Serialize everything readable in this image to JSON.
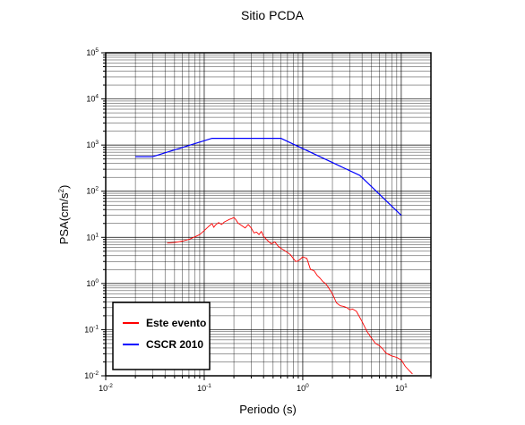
{
  "chart_data": {
    "type": "line",
    "title": "Sitio PCDA",
    "xlabel": "Periodo (s)",
    "ylabel": "PSA(cm/s",
    "ylabel_exponent": "2",
    "ylabel_suffix": ")",
    "x_scale": "log",
    "y_scale": "log",
    "xlim": [
      0.01,
      20
    ],
    "ylim": [
      0.01,
      100000
    ],
    "grid": true,
    "legend_position": "bottom-left",
    "x_ticks": [
      {
        "base": "10",
        "exp": "-2",
        "value": 0.01
      },
      {
        "base": "10",
        "exp": "-1",
        "value": 0.1
      },
      {
        "base": "10",
        "exp": "0",
        "value": 1
      },
      {
        "base": "10",
        "exp": "1",
        "value": 10
      }
    ],
    "y_ticks": [
      {
        "base": "10",
        "exp": "-2",
        "value": 0.01
      },
      {
        "base": "10",
        "exp": "-1",
        "value": 0.1
      },
      {
        "base": "10",
        "exp": "0",
        "value": 1
      },
      {
        "base": "10",
        "exp": "1",
        "value": 10
      },
      {
        "base": "10",
        "exp": "2",
        "value": 100
      },
      {
        "base": "10",
        "exp": "3",
        "value": 1000
      },
      {
        "base": "10",
        "exp": "4",
        "value": 10000
      },
      {
        "base": "10",
        "exp": "5",
        "value": 100000
      }
    ],
    "series": [
      {
        "name": "Este evento",
        "color": "#ff0000",
        "points": [
          [
            0.042,
            7.5
          ],
          [
            0.05,
            7.8
          ],
          [
            0.06,
            8.3
          ],
          [
            0.07,
            9.0
          ],
          [
            0.08,
            10.2
          ],
          [
            0.09,
            11.5
          ],
          [
            0.1,
            14.0
          ],
          [
            0.11,
            17.0
          ],
          [
            0.12,
            20.0
          ],
          [
            0.125,
            16.5
          ],
          [
            0.13,
            18.5
          ],
          [
            0.14,
            21.0
          ],
          [
            0.15,
            19.0
          ],
          [
            0.16,
            21.5
          ],
          [
            0.17,
            23.0
          ],
          [
            0.18,
            24.5
          ],
          [
            0.19,
            25.5
          ],
          [
            0.2,
            27.0
          ],
          [
            0.21,
            24.0
          ],
          [
            0.22,
            20.5
          ],
          [
            0.24,
            18.0
          ],
          [
            0.26,
            16.0
          ],
          [
            0.28,
            19.0
          ],
          [
            0.3,
            16.0
          ],
          [
            0.32,
            12.5
          ],
          [
            0.34,
            13.0
          ],
          [
            0.36,
            11.5
          ],
          [
            0.38,
            13.5
          ],
          [
            0.4,
            10.5
          ],
          [
            0.44,
            8.5
          ],
          [
            0.48,
            7.2
          ],
          [
            0.52,
            8.0
          ],
          [
            0.56,
            6.5
          ],
          [
            0.6,
            5.8
          ],
          [
            0.65,
            5.2
          ],
          [
            0.7,
            4.7
          ],
          [
            0.75,
            4.2
          ],
          [
            0.8,
            3.5
          ],
          [
            0.85,
            3.0
          ],
          [
            0.9,
            3.1
          ],
          [
            0.95,
            3.4
          ],
          [
            1.0,
            3.8
          ],
          [
            1.1,
            3.5
          ],
          [
            1.2,
            2.0
          ],
          [
            1.3,
            1.9
          ],
          [
            1.4,
            1.5
          ],
          [
            1.5,
            1.3
          ],
          [
            1.6,
            1.1
          ],
          [
            1.7,
            1.0
          ],
          [
            1.8,
            0.85
          ],
          [
            2.0,
            0.6
          ],
          [
            2.2,
            0.38
          ],
          [
            2.4,
            0.33
          ],
          [
            2.6,
            0.32
          ],
          [
            2.8,
            0.3
          ],
          [
            3.0,
            0.27
          ],
          [
            3.2,
            0.28
          ],
          [
            3.5,
            0.25
          ],
          [
            4.0,
            0.15
          ],
          [
            4.5,
            0.09
          ],
          [
            5.0,
            0.065
          ],
          [
            5.5,
            0.05
          ],
          [
            6.0,
            0.045
          ],
          [
            6.5,
            0.038
          ],
          [
            7.0,
            0.031
          ],
          [
            8.0,
            0.027
          ],
          [
            9.0,
            0.025
          ],
          [
            10.0,
            0.022
          ],
          [
            11.0,
            0.016
          ],
          [
            12.0,
            0.013
          ],
          [
            13.0,
            0.011
          ]
        ]
      },
      {
        "name": "CSCR 2010",
        "color": "#0000ff",
        "points": [
          [
            0.02,
            560
          ],
          [
            0.03,
            560
          ],
          [
            0.12,
            1400
          ],
          [
            0.6,
            1400
          ],
          [
            3.8,
            220
          ],
          [
            10.0,
            30
          ]
        ]
      }
    ]
  }
}
